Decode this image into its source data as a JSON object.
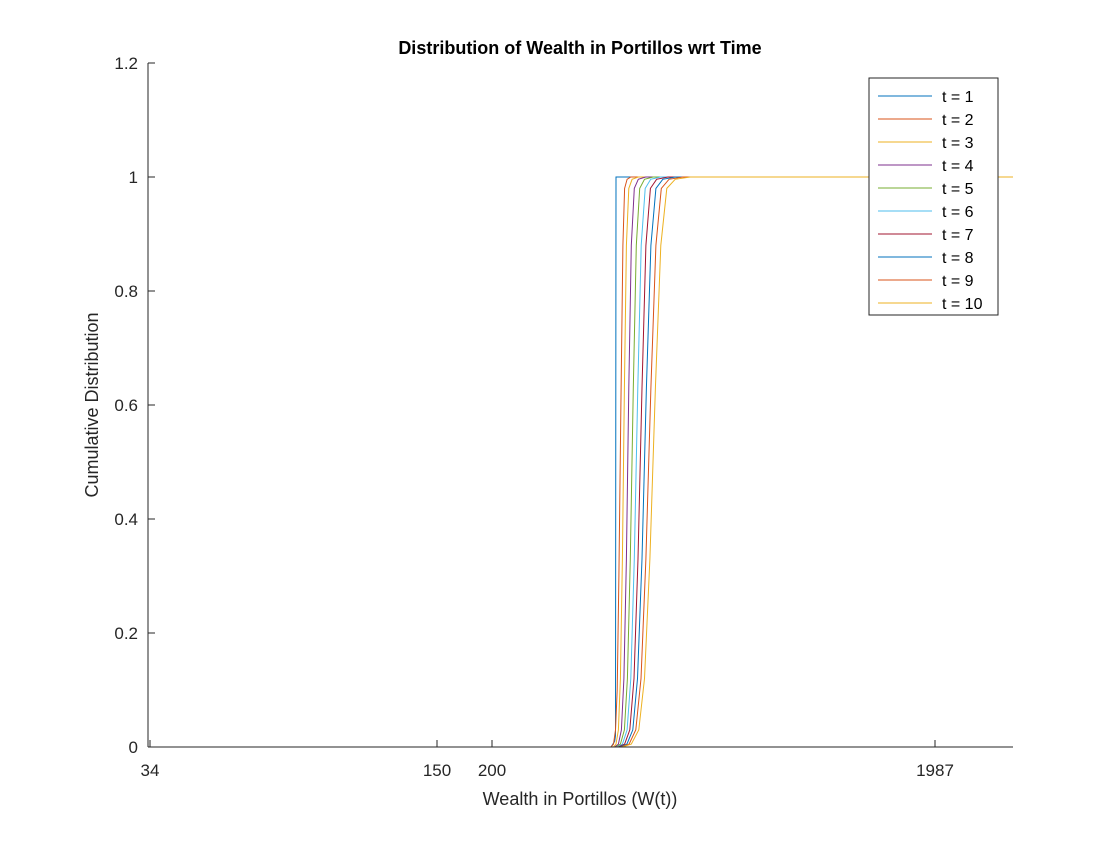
{
  "chart_data": {
    "type": "line",
    "title": "Distribution of Wealth in Portillos wrt Time",
    "xlabel": "Wealth in Portillos (W(t))",
    "ylabel": "Cumulative Distribution",
    "xlim": [
      30,
      2170
    ],
    "ylim": [
      0,
      1.2
    ],
    "x_ticks": [
      34,
      150,
      200,
      1987
    ],
    "x_tick_labels": [
      "34",
      "150",
      "200",
      "1987"
    ],
    "y_ticks": [
      0,
      0.2,
      0.4,
      0.6,
      0.8,
      1,
      1.2
    ],
    "y_tick_labels": [
      "0",
      "0.2",
      "0.4",
      "0.6",
      "0.8",
      "1",
      "1.2"
    ],
    "grid": false,
    "legend_position": "top-right",
    "series": [
      {
        "name": "t = 1",
        "color": "#0072BD",
        "x": [
          34,
          600,
          680,
          695,
          698,
          700,
          702,
          720,
          2170
        ],
        "y": [
          0,
          0,
          0,
          0.01,
          0.02,
          1,
          1,
          1,
          1
        ]
      },
      {
        "name": "t = 2",
        "color": "#D95319",
        "x": [
          34,
          600,
          680,
          690,
          698,
          705,
          712,
          720,
          728,
          735,
          745,
          760,
          2170
        ],
        "y": [
          0,
          0,
          0,
          0.005,
          0.03,
          0.1,
          0.3,
          0.6,
          0.88,
          0.98,
          0.996,
          1,
          1
        ]
      },
      {
        "name": "t = 3",
        "color": "#EDB120",
        "x": [
          34,
          600,
          690,
          700,
          710,
          718,
          726,
          734,
          742,
          752,
          765,
          790,
          2170
        ],
        "y": [
          0,
          0,
          0,
          0.005,
          0.03,
          0.12,
          0.33,
          0.63,
          0.88,
          0.98,
          0.996,
          1,
          1
        ]
      },
      {
        "name": "t = 4",
        "color": "#7E2F8E",
        "x": [
          34,
          600,
          695,
          710,
          722,
          732,
          742,
          752,
          762,
          774,
          790,
          820,
          2170
        ],
        "y": [
          0,
          0,
          0,
          0.005,
          0.03,
          0.12,
          0.33,
          0.63,
          0.88,
          0.98,
          0.996,
          1,
          1
        ]
      },
      {
        "name": "t = 5",
        "color": "#77AC30",
        "x": [
          34,
          600,
          700,
          718,
          734,
          746,
          758,
          770,
          782,
          796,
          815,
          850,
          2170
        ],
        "y": [
          0,
          0,
          0,
          0.005,
          0.03,
          0.12,
          0.33,
          0.63,
          0.88,
          0.98,
          0.996,
          1,
          1
        ]
      },
      {
        "name": "t = 6",
        "color": "#4DBEEE",
        "x": [
          34,
          600,
          705,
          726,
          745,
          760,
          774,
          788,
          802,
          818,
          840,
          880,
          2170
        ],
        "y": [
          0,
          0,
          0,
          0.005,
          0.03,
          0.12,
          0.33,
          0.63,
          0.88,
          0.98,
          0.996,
          1,
          1
        ]
      },
      {
        "name": "t = 7",
        "color": "#A2142F",
        "x": [
          34,
          600,
          710,
          735,
          756,
          773,
          789,
          805,
          821,
          839,
          864,
          910,
          2170
        ],
        "y": [
          0,
          0,
          0,
          0.005,
          0.03,
          0.12,
          0.33,
          0.63,
          0.88,
          0.98,
          0.996,
          1,
          1
        ]
      },
      {
        "name": "t = 8",
        "color": "#0072BD",
        "x": [
          34,
          600,
          715,
          744,
          768,
          787,
          805,
          823,
          841,
          861,
          889,
          940,
          2170
        ],
        "y": [
          0,
          0,
          0,
          0.005,
          0.03,
          0.12,
          0.33,
          0.63,
          0.88,
          0.98,
          0.996,
          1,
          1
        ]
      },
      {
        "name": "t = 9",
        "color": "#D95319",
        "x": [
          34,
          600,
          720,
          753,
          780,
          801,
          821,
          841,
          861,
          883,
          914,
          970,
          2170
        ],
        "y": [
          0,
          0,
          0,
          0.005,
          0.03,
          0.12,
          0.33,
          0.63,
          0.88,
          0.98,
          0.996,
          1,
          1
        ]
      },
      {
        "name": "t = 10",
        "color": "#EDB120",
        "x": [
          34,
          600,
          725,
          762,
          792,
          815,
          837,
          859,
          881,
          905,
          939,
          1000,
          2170
        ],
        "y": [
          0,
          0,
          0,
          0.005,
          0.03,
          0.12,
          0.33,
          0.63,
          0.88,
          0.98,
          0.996,
          1,
          1
        ]
      }
    ]
  }
}
